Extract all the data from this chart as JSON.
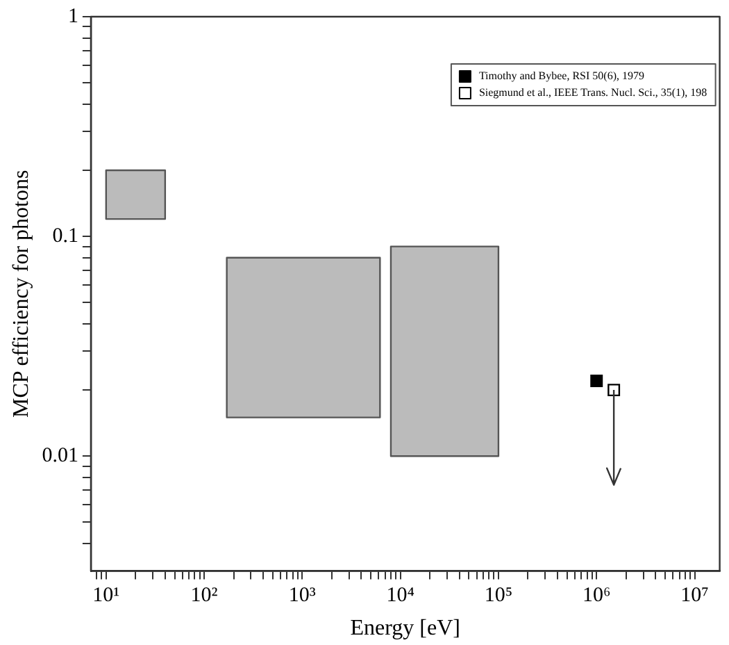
{
  "chart_data": {
    "type": "scatter",
    "xlabel": "Energy [eV]",
    "ylabel": "MCP efficiency for photons",
    "log": "xy",
    "grid": false,
    "legend": "top right",
    "marker": "square",
    "xlim": [
      7,
      18000000
    ],
    "ylim": [
      0.003,
      1
    ],
    "xticks": [
      {
        "value": 8,
        "label": null
      },
      {
        "value": 9,
        "label": null
      },
      {
        "value": 10,
        "label": "10¹"
      },
      {
        "value": 20,
        "label": null
      },
      {
        "value": 30,
        "label": null
      },
      {
        "value": 40,
        "label": null
      },
      {
        "value": 50,
        "label": null
      },
      {
        "value": 60,
        "label": null
      },
      {
        "value": 70,
        "label": null
      },
      {
        "value": 80,
        "label": null
      },
      {
        "value": 90,
        "label": null
      },
      {
        "value": 100,
        "label": "10²"
      },
      {
        "value": 200,
        "label": null
      },
      {
        "value": 300,
        "label": null
      },
      {
        "value": 400,
        "label": null
      },
      {
        "value": 500,
        "label": null
      },
      {
        "value": 600,
        "label": null
      },
      {
        "value": 700,
        "label": null
      },
      {
        "value": 800,
        "label": null
      },
      {
        "value": 900,
        "label": null
      },
      {
        "value": 1000,
        "label": "10³"
      },
      {
        "value": 2000,
        "label": null
      },
      {
        "value": 3000,
        "label": null
      },
      {
        "value": 4000,
        "label": null
      },
      {
        "value": 5000,
        "label": null
      },
      {
        "value": 6000,
        "label": null
      },
      {
        "value": 7000,
        "label": null
      },
      {
        "value": 8000,
        "label": null
      },
      {
        "value": 9000,
        "label": null
      },
      {
        "value": 10000,
        "label": "10⁴"
      },
      {
        "value": 20000,
        "label": null
      },
      {
        "value": 30000,
        "label": null
      },
      {
        "value": 40000,
        "label": null
      },
      {
        "value": 50000,
        "label": null
      },
      {
        "value": 60000,
        "label": null
      },
      {
        "value": 70000,
        "label": null
      },
      {
        "value": 80000,
        "label": null
      },
      {
        "value": 90000,
        "label": null
      },
      {
        "value": 100000,
        "label": "10⁵"
      },
      {
        "value": 200000,
        "label": null
      },
      {
        "value": 300000,
        "label": null
      },
      {
        "value": 400000,
        "label": null
      },
      {
        "value": 500000,
        "label": null
      },
      {
        "value": 600000,
        "label": null
      },
      {
        "value": 700000,
        "label": null
      },
      {
        "value": 800000,
        "label": null
      },
      {
        "value": 900000,
        "label": null
      },
      {
        "value": 1000000,
        "label": "10⁶"
      },
      {
        "value": 2000000,
        "label": null
      },
      {
        "value": 3000000,
        "label": null
      },
      {
        "value": 4000000,
        "label": null
      },
      {
        "value": 5000000,
        "label": null
      },
      {
        "value": 6000000,
        "label": null
      },
      {
        "value": 7000000,
        "label": null
      },
      {
        "value": 8000000,
        "label": null
      },
      {
        "value": 9000000,
        "label": null
      },
      {
        "value": 10000000,
        "label": "10⁷"
      }
    ],
    "yticks": [
      {
        "value": 0.004,
        "label": null
      },
      {
        "value": 0.005,
        "label": null
      },
      {
        "value": 0.006,
        "label": null
      },
      {
        "value": 0.007,
        "label": null
      },
      {
        "value": 0.008,
        "label": null
      },
      {
        "value": 0.009,
        "label": null
      },
      0.01,
      {
        "value": 0.02,
        "label": null
      },
      {
        "value": 0.03,
        "label": null
      },
      {
        "value": 0.04,
        "label": null
      },
      {
        "value": 0.05,
        "label": null
      },
      {
        "value": 0.06,
        "label": null
      },
      {
        "value": 0.07,
        "label": null
      },
      {
        "value": 0.08,
        "label": null
      },
      {
        "value": 0.09,
        "label": null
      },
      0.1,
      {
        "value": 0.2,
        "label": null
      },
      {
        "value": 0.3,
        "label": null
      },
      {
        "value": 0.4,
        "label": null
      },
      {
        "value": 0.5,
        "label": null
      },
      {
        "value": 0.6,
        "label": null
      },
      {
        "value": 0.7,
        "label": null
      },
      {
        "value": 0.8,
        "label": null
      },
      {
        "value": 0.9,
        "label": null
      },
      1
    ],
    "series": [
      {
        "type": "area",
        "marker": "none",
        "color": "#555555",
        "x": [
          10,
          40,
          40,
          10,
          10
        ],
        "values": [
          0.12,
          0.12,
          0.2,
          0.2,
          0.12
        ]
      },
      {
        "type": "area",
        "marker": "none",
        "color": "#555555",
        "x": [
          170,
          6200,
          6200,
          170,
          170
        ],
        "values": [
          0.015,
          0.015,
          0.08,
          0.08,
          0.015
        ]
      },
      {
        "type": "area",
        "marker": "none",
        "color": "#555555",
        "x": [
          8000,
          100000,
          100000,
          8000,
          8000
        ],
        "values": [
          0.01,
          0.01,
          0.09,
          0.09,
          0.01
        ]
      },
      {
        "name": "Timothy and Bybee, RSI 50(6), 1979",
        "color": "#000000",
        "x": [
          1000000
        ],
        "values": [
          0.022
        ]
      },
      {
        "name": "Siegmund et al., IEEE Trans. Nucl. Sci., 35(1), 198",
        "color": "#ffffff",
        "x": [
          1500000
        ],
        "values": [
          0.02
        ],
        "errors": [
          [
            0.0074,
            0.02
          ]
        ]
      }
    ]
  }
}
